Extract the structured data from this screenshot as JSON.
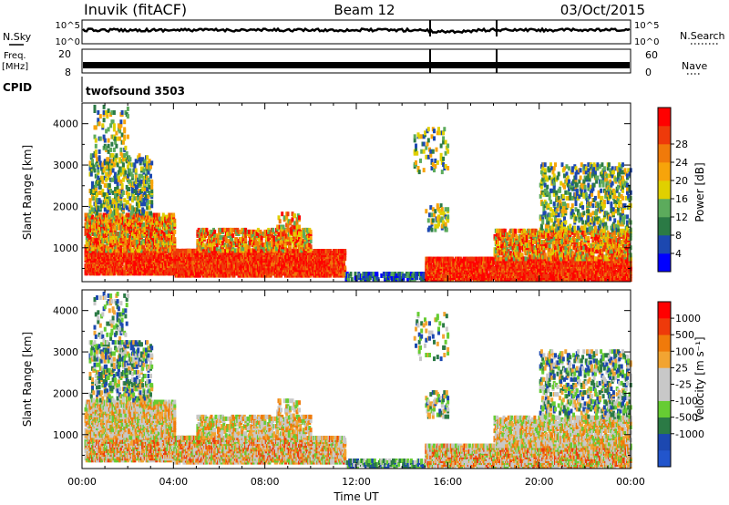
{
  "header": {
    "station": "Inuvik (fitACF)",
    "beam": "Beam 12",
    "date": "03/Oct/2015"
  },
  "noise_panel": {
    "left_label": "N.Sky",
    "right_label": "N.Search",
    "tick_top": "10^5",
    "tick_bottom": "10^0"
  },
  "freq_panel": {
    "left_label": "Freq.",
    "left_unit": "[MHz]",
    "left_ticks": [
      "20",
      "8"
    ],
    "right_label": "Nave",
    "right_ticks": [
      "60",
      "0"
    ]
  },
  "cpid": {
    "label": "CPID",
    "value": "twofsound 3503"
  },
  "colors": {
    "power_scale": [
      "#0000ff",
      "#1c48b0",
      "#2b7a45",
      "#5cab5c",
      "#e0d000",
      "#f7a40a",
      "#f07a0a",
      "#ee3a0a",
      "#ff0000"
    ],
    "velocity_scale": [
      "#ff0000",
      "#ee3a0a",
      "#f07a0a",
      "#f2a432",
      "#c8c8c8",
      "#c8c8c8",
      "#66cc33",
      "#2b7a45",
      "#1c48b0",
      "#2255cc"
    ]
  },
  "chart_data": [
    {
      "type": "heatmap",
      "quantity": "Power",
      "ylabel": "Slant Range [km]",
      "y_ticks": [
        1000,
        2000,
        3000,
        4000
      ],
      "ylim": [
        180,
        4500
      ],
      "x_ticks": [
        "00:00",
        "04:00",
        "08:00",
        "12:00",
        "16:00",
        "20:00",
        "00:00"
      ],
      "xlim_hours": [
        0,
        24
      ],
      "colorbar": {
        "label": "Power [dB]",
        "ticks": [
          "4",
          "8",
          "12",
          "16",
          "20",
          "24",
          "28"
        ],
        "range": [
          0,
          32
        ]
      }
    },
    {
      "type": "heatmap",
      "quantity": "Velocity",
      "ylabel": "Slant Range [km]",
      "y_ticks": [
        1000,
        2000,
        3000,
        4000
      ],
      "ylim": [
        180,
        4500
      ],
      "x_ticks": [
        "00:00",
        "04:00",
        "08:00",
        "12:00",
        "16:00",
        "20:00",
        "00:00"
      ],
      "xlim_hours": [
        0,
        24
      ],
      "xlabel": "Time UT",
      "colorbar": {
        "label": "Velocity [m s⁻¹]",
        "ticks": [
          "1000",
          "500",
          "100",
          "25",
          "-25",
          "-100",
          "-500",
          "-1000"
        ]
      }
    }
  ]
}
